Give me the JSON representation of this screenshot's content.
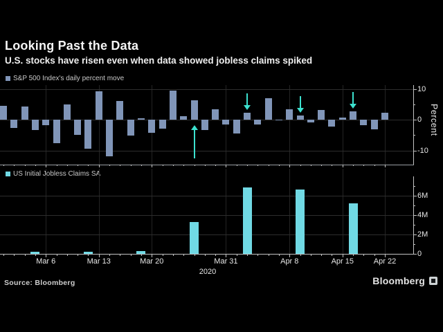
{
  "header": {
    "title": "Looking Past the Data",
    "subtitle": "U.S. stocks have risen even when data showed jobless claims spiked"
  },
  "panels": {
    "top_legend": "S&P 500 Index's daily percent move",
    "bottom_legend": "US Initial Jobless Claims SA",
    "percent_axis_label": "Percent"
  },
  "footer": {
    "source": "Source: Bloomberg",
    "brand": "Bloomberg",
    "brand_icon": "bloomberg-terminal-icon"
  },
  "colors": {
    "background": "#000000",
    "spx_bar": "#8095b8",
    "claims_bar": "#70d9e4",
    "arrow": "#3ce1cf",
    "grid": "#2d2d2d",
    "axis": "#c4c4c4",
    "text": "#e8e8e8"
  },
  "x_axis": {
    "tick_labels": [
      {
        "label": "Mar 6",
        "index": 4
      },
      {
        "label": "Mar 13",
        "index": 9
      },
      {
        "label": "Mar 20",
        "index": 14
      },
      {
        "label": "Mar 31",
        "index": 21
      },
      {
        "label": "Apr 8",
        "index": 27
      },
      {
        "label": "Apr 15",
        "index": 32
      },
      {
        "label": "Apr 22",
        "index": 36
      }
    ],
    "year": "2020"
  },
  "chart_data": [
    {
      "type": "bar",
      "name": "sp500-daily-percent-move",
      "legend": "S&P 500 Index's daily percent move",
      "ylabel": "Percent",
      "ylim": [
        -14.5,
        11
      ],
      "yticks": [
        10,
        0,
        -10
      ],
      "yticks_minor": [
        5,
        -5
      ],
      "grid": true,
      "series": [
        {
          "date": "Mar 2",
          "value": 4.6
        },
        {
          "date": "Mar 3",
          "value": -2.8
        },
        {
          "date": "Mar 4",
          "value": 4.2
        },
        {
          "date": "Mar 5",
          "value": -3.4
        },
        {
          "date": "Mar 6",
          "value": -1.7
        },
        {
          "date": "Mar 9",
          "value": -7.6
        },
        {
          "date": "Mar 10",
          "value": 4.9
        },
        {
          "date": "Mar 11",
          "value": -4.9
        },
        {
          "date": "Mar 12",
          "value": -9.5
        },
        {
          "date": "Mar 13",
          "value": 9.3
        },
        {
          "date": "Mar 16",
          "value": -12.0
        },
        {
          "date": "Mar 17",
          "value": 6.0
        },
        {
          "date": "Mar 18",
          "value": -5.2
        },
        {
          "date": "Mar 19",
          "value": 0.5
        },
        {
          "date": "Mar 20",
          "value": -4.3
        },
        {
          "date": "Mar 23",
          "value": -2.9
        },
        {
          "date": "Mar 24",
          "value": 9.4
        },
        {
          "date": "Mar 25",
          "value": 1.2
        },
        {
          "date": "Mar 26",
          "value": 6.2
        },
        {
          "date": "Mar 27",
          "value": -3.4
        },
        {
          "date": "Mar 30",
          "value": 3.4
        },
        {
          "date": "Mar 31",
          "value": -1.6
        },
        {
          "date": "Apr 1",
          "value": -4.4
        },
        {
          "date": "Apr 2",
          "value": 2.3
        },
        {
          "date": "Apr 3",
          "value": -1.5
        },
        {
          "date": "Apr 6",
          "value": 7.0
        },
        {
          "date": "Apr 7",
          "value": -0.2
        },
        {
          "date": "Apr 8",
          "value": 3.4
        },
        {
          "date": "Apr 9",
          "value": 1.4
        },
        {
          "date": "Apr 13",
          "value": -1.0
        },
        {
          "date": "Apr 14",
          "value": 3.1
        },
        {
          "date": "Apr 15",
          "value": -2.2
        },
        {
          "date": "Apr 16",
          "value": 0.6
        },
        {
          "date": "Apr 17",
          "value": 2.7
        },
        {
          "date": "Apr 20",
          "value": -1.8
        },
        {
          "date": "Apr 21",
          "value": -3.1
        },
        {
          "date": "Apr 22",
          "value": 2.3
        }
      ],
      "annotations": [
        {
          "type": "arrow",
          "direction": "up",
          "date": "Mar 26",
          "index": 18
        },
        {
          "type": "arrow",
          "direction": "down",
          "date": "Apr 2",
          "index": 23
        },
        {
          "type": "arrow",
          "direction": "down",
          "date": "Apr 9",
          "index": 28
        },
        {
          "type": "arrow",
          "direction": "down",
          "date": "Apr 16",
          "index": 33
        }
      ]
    },
    {
      "type": "bar",
      "name": "us-initial-jobless-claims-sa",
      "legend": "US Initial Jobless Claims SA",
      "ylim_millions": [
        0,
        8
      ],
      "yticks": [
        "0",
        "2M",
        "4M",
        "6M"
      ],
      "yticks_minor_millions": [
        1,
        3,
        5,
        7
      ],
      "grid": true,
      "series": [
        {
          "date": "Mar 5",
          "index": 3,
          "value_millions": 0.22
        },
        {
          "date": "Mar 12",
          "index": 8,
          "value_millions": 0.21
        },
        {
          "date": "Mar 19",
          "index": 13,
          "value_millions": 0.28
        },
        {
          "date": "Mar 26",
          "index": 18,
          "value_millions": 3.31
        },
        {
          "date": "Apr 2",
          "index": 23,
          "value_millions": 6.87
        },
        {
          "date": "Apr 9",
          "index": 28,
          "value_millions": 6.61
        },
        {
          "date": "Apr 16",
          "index": 33,
          "value_millions": 5.25
        }
      ]
    }
  ]
}
